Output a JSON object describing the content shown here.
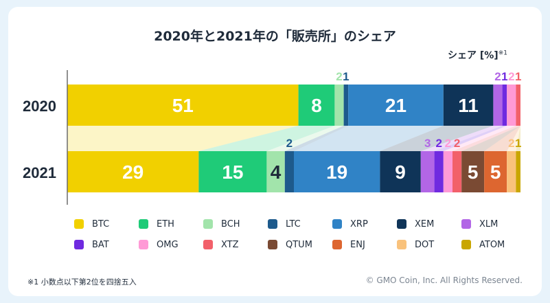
{
  "chart_data": {
    "type": "bar",
    "orientation": "horizontal-stacked",
    "title": "2020年と2021年の「販売所」のシェア",
    "unit_label": "シェア [%]",
    "unit_note": "※1",
    "categories": [
      "2020",
      "2021"
    ],
    "series": [
      {
        "name": "BTC",
        "color": "#f1d000",
        "values": [
          51,
          29
        ]
      },
      {
        "name": "ETH",
        "color": "#1fcb78",
        "values": [
          8,
          15
        ]
      },
      {
        "name": "BCH",
        "color": "#a2e4ab",
        "values": [
          2,
          4
        ]
      },
      {
        "name": "LTC",
        "color": "#1d5a8c",
        "values": [
          1,
          2
        ]
      },
      {
        "name": "XRP",
        "color": "#3083c6",
        "values": [
          21,
          19
        ]
      },
      {
        "name": "XEM",
        "color": "#0f3458",
        "values": [
          11,
          9
        ]
      },
      {
        "name": "XLM",
        "color": "#b266e6",
        "values": [
          2,
          3
        ]
      },
      {
        "name": "BAT",
        "color": "#6f2ae0",
        "values": [
          1,
          2
        ]
      },
      {
        "name": "OMG",
        "color": "#ff9ad6",
        "values": [
          2,
          2
        ]
      },
      {
        "name": "XTZ",
        "color": "#f2606a",
        "values": [
          1,
          2
        ]
      },
      {
        "name": "QTUM",
        "color": "#7a4a33",
        "values": [
          0,
          5
        ]
      },
      {
        "name": "ENJ",
        "color": "#dd6630",
        "values": [
          0,
          5
        ]
      },
      {
        "name": "DOT",
        "color": "#f9c27c",
        "values": [
          0,
          2
        ]
      },
      {
        "name": "ATOM",
        "color": "#c9a600",
        "values": [
          0,
          1
        ]
      }
    ],
    "data_labels": [
      [
        "51",
        "8",
        "2",
        "1",
        "21",
        "11",
        "2",
        "1",
        "2",
        "1",
        null,
        null,
        null,
        null
      ],
      [
        "29",
        "15",
        "4",
        "2",
        "19",
        "9",
        "3",
        "2",
        "2",
        "2",
        "5",
        "5",
        "2",
        "1"
      ]
    ],
    "xlim": [
      0,
      100
    ]
  },
  "footnote": "※1  小数点以下第2位を四捨五入",
  "copyright": "© GMO Coin, Inc. All Rights Reserved."
}
